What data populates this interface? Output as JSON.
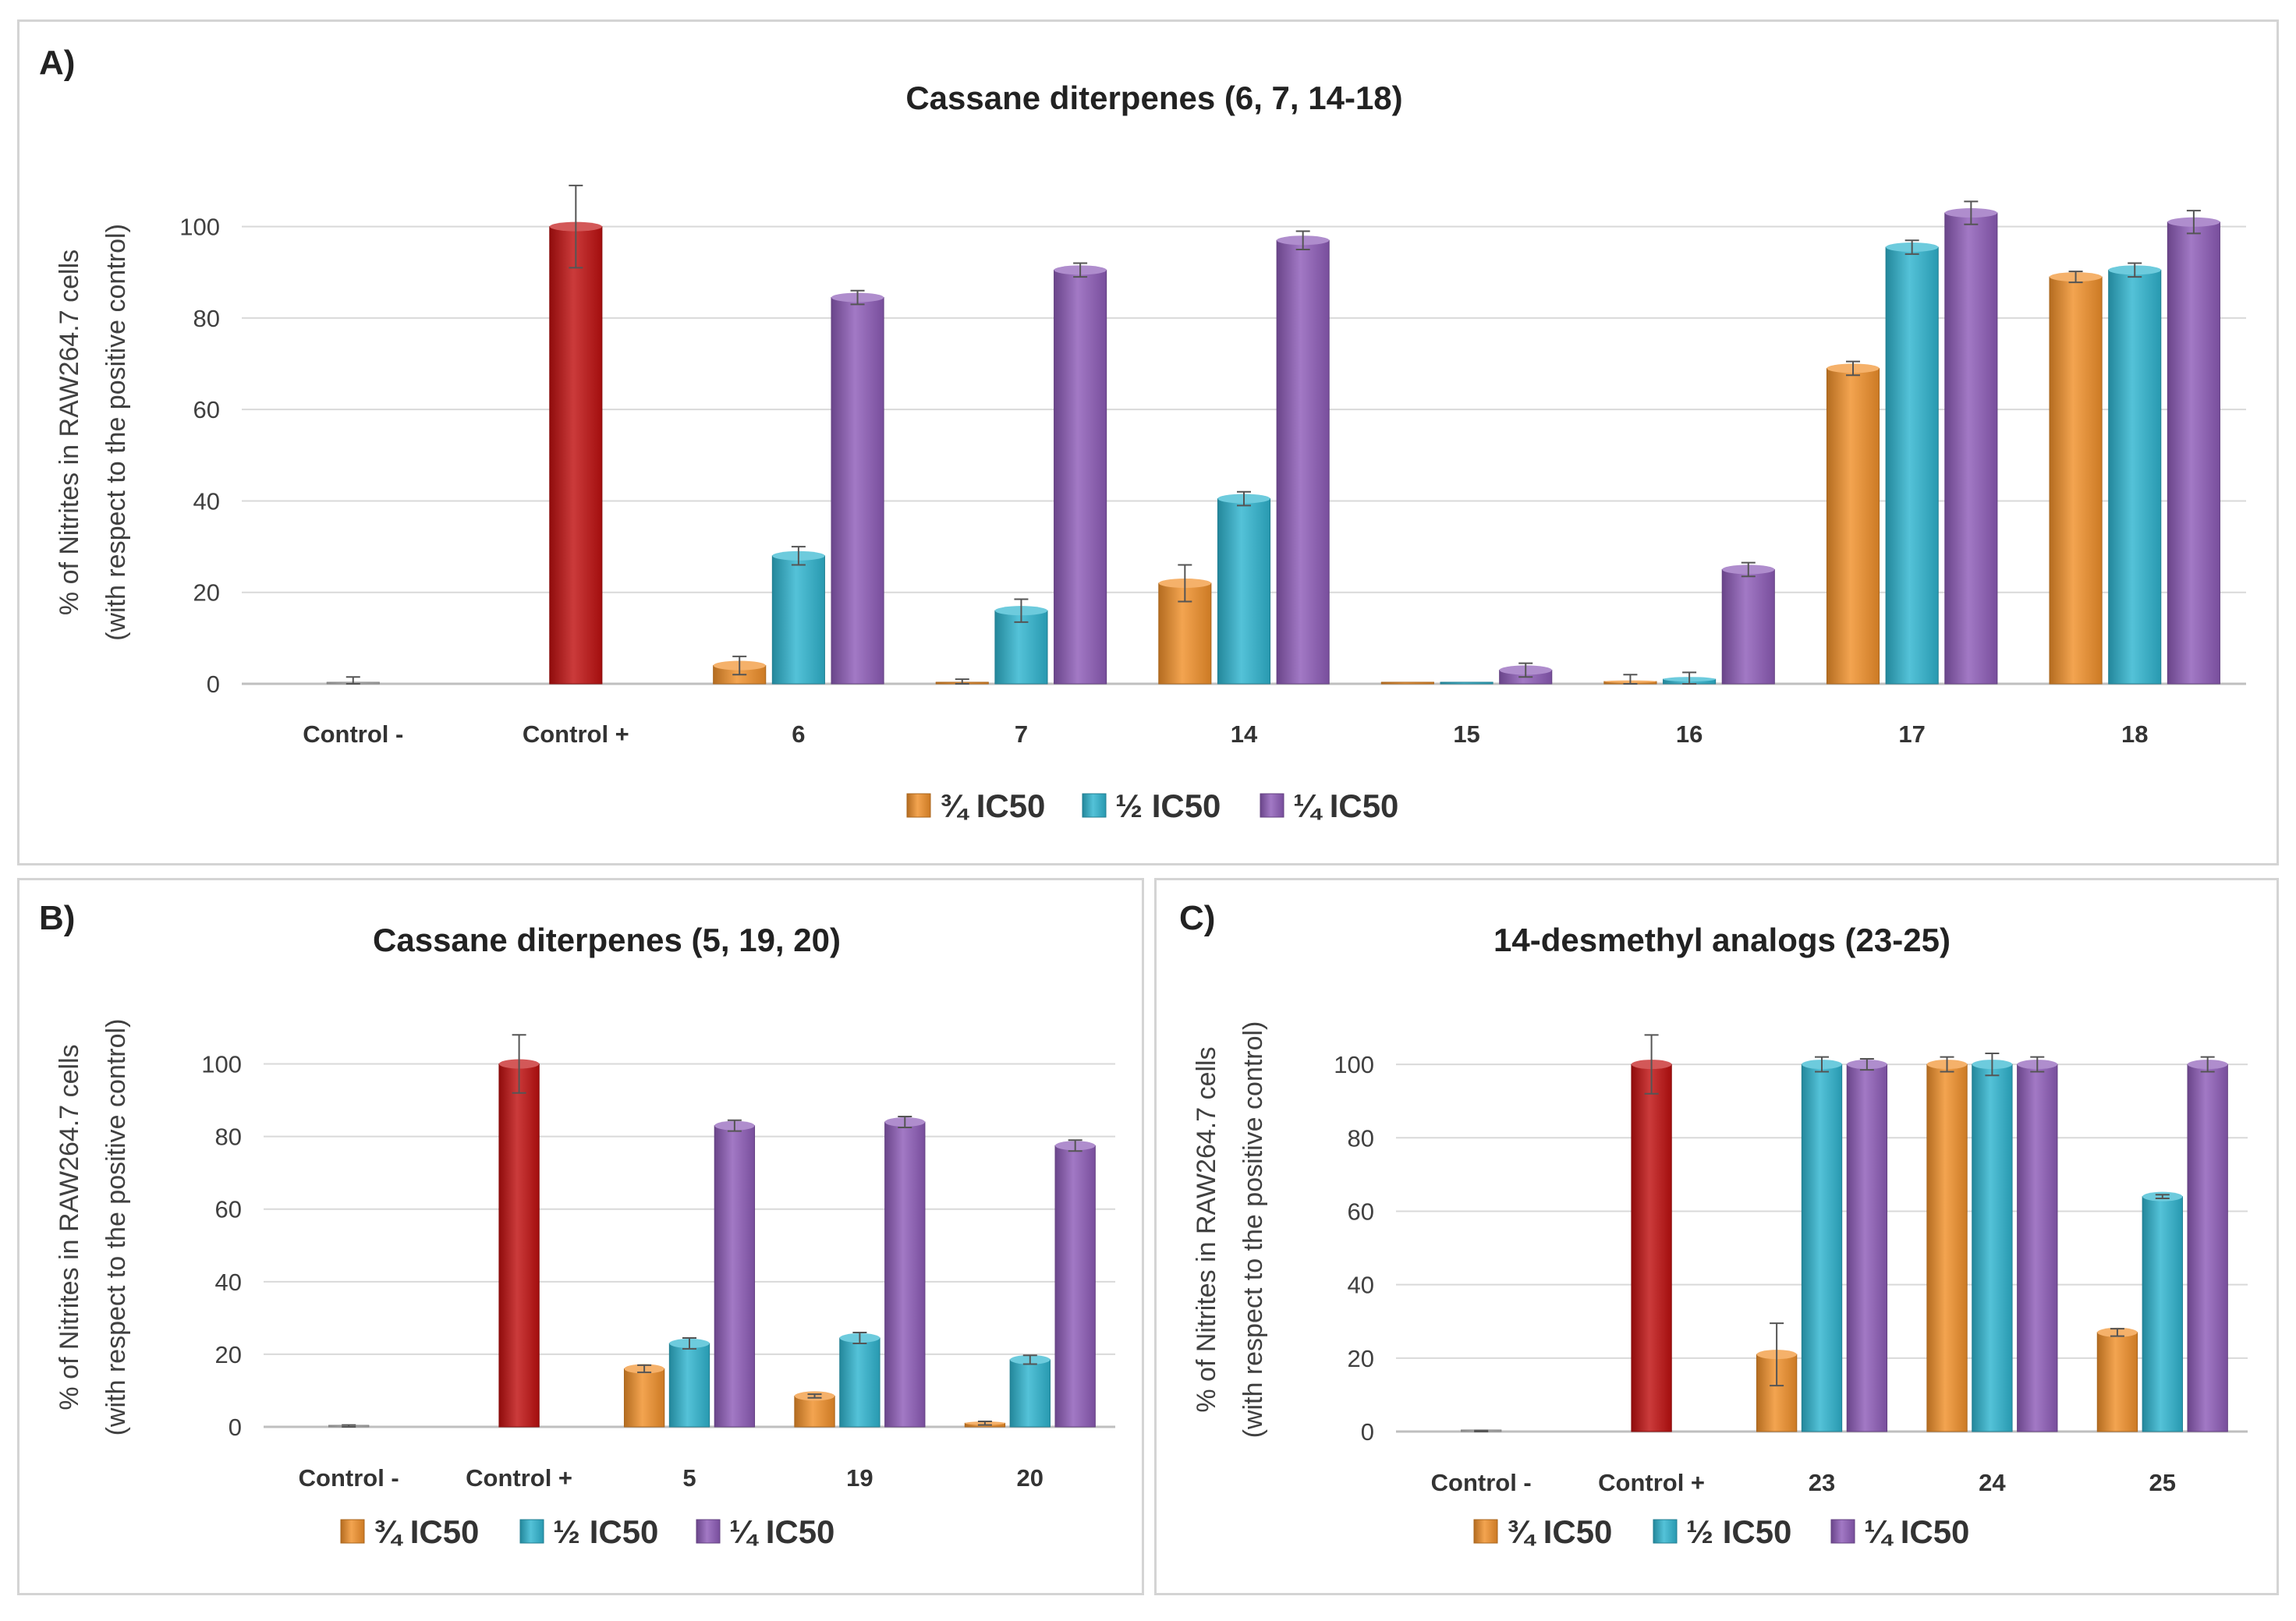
{
  "colors": {
    "three_quarter_ic50": "#f0902a",
    "half_ic50": "#2fb4cf",
    "quarter_ic50": "#8d5cb8",
    "control_positive": "#c01010",
    "gridline": "#d9d9d9",
    "axis": "#bfbfbf"
  },
  "chart_data": [
    {
      "panel": "A)",
      "type": "bar",
      "title": "Cassane diterpenes (6, 7, 14-18)",
      "ylabel_line1": "% of Nitrites in RAW264.7 cells",
      "ylabel_line2": "(with respect to the positive control)",
      "ylim": [
        0,
        110
      ],
      "yticks": [
        0,
        20,
        40,
        60,
        80,
        100
      ],
      "grid": true,
      "legend_position": "bottom",
      "categories": [
        "Control -",
        "Control +",
        "6",
        "7",
        "14",
        "15",
        "16",
        "17",
        "18"
      ],
      "controls": [
        {
          "category": "Control -",
          "value": 0,
          "error": 1.5
        },
        {
          "category": "Control +",
          "value": 100,
          "error": 9
        }
      ],
      "series": [
        {
          "name": "¾ IC50",
          "values": [
            null,
            null,
            4,
            0,
            22,
            0,
            0.5,
            69,
            89
          ],
          "errors": [
            null,
            null,
            2,
            1,
            4,
            0,
            1.5,
            1.5,
            1.2
          ]
        },
        {
          "name": "½ IC50",
          "values": [
            null,
            null,
            28,
            16,
            40.5,
            0,
            1,
            95.5,
            90.5
          ],
          "errors": [
            null,
            null,
            2,
            2.5,
            1.5,
            0,
            1.5,
            1.5,
            1.5
          ]
        },
        {
          "name": "¼ IC50",
          "values": [
            null,
            null,
            84.5,
            90.5,
            97,
            3,
            25,
            103,
            101
          ],
          "errors": [
            null,
            null,
            1.5,
            1.5,
            2,
            1.5,
            1.5,
            2.5,
            2.5
          ]
        }
      ]
    },
    {
      "panel": "B)",
      "type": "bar",
      "title": "Cassane diterpenes (5, 19, 20)",
      "ylabel_line1": "% of Nitrites in RAW264.7 cells",
      "ylabel_line2": "(with respect to the positive control)",
      "ylim": [
        0,
        110
      ],
      "yticks": [
        0,
        20,
        40,
        60,
        80,
        100
      ],
      "grid": true,
      "legend_position": "bottom",
      "categories": [
        "Control -",
        "Control +",
        "5",
        "19",
        "20"
      ],
      "controls": [
        {
          "category": "Control -",
          "value": 0,
          "error": 0.5
        },
        {
          "category": "Control +",
          "value": 100,
          "error": 8
        }
      ],
      "series": [
        {
          "name": "¾ IC50",
          "values": [
            null,
            null,
            16,
            8.5,
            1
          ],
          "errors": [
            null,
            null,
            1,
            0.5,
            0.5
          ]
        },
        {
          "name": "½ IC50",
          "values": [
            null,
            null,
            23,
            24.5,
            18.5
          ],
          "errors": [
            null,
            null,
            1.5,
            1.5,
            1.2
          ]
        },
        {
          "name": "¼ IC50",
          "values": [
            null,
            null,
            83,
            84,
            77.5
          ],
          "errors": [
            null,
            null,
            1.5,
            1.5,
            1.5
          ]
        }
      ]
    },
    {
      "panel": "C)",
      "type": "bar",
      "title": "14-desmethyl analogs (23-25)",
      "ylabel_line1": "% of Nitrites in RAW264.7 cells",
      "ylabel_line2": "(with respect to the positive control)",
      "ylim": [
        0,
        110
      ],
      "yticks": [
        0,
        20,
        40,
        60,
        80,
        100
      ],
      "grid": true,
      "legend_position": "bottom",
      "categories": [
        "Control -",
        "Control +",
        "23",
        "24",
        "25"
      ],
      "controls": [
        {
          "category": "Control -",
          "value": 0,
          "error": 0.3
        },
        {
          "category": "Control +",
          "value": 100,
          "error": 8
        }
      ],
      "series": [
        {
          "name": "¾ IC50",
          "values": [
            null,
            null,
            21,
            100,
            27
          ],
          "errors": [
            null,
            null,
            8.5,
            2,
            1
          ]
        },
        {
          "name": "½ IC50",
          "values": [
            null,
            null,
            100,
            100,
            64
          ],
          "errors": [
            null,
            null,
            2,
            3,
            0.5
          ]
        },
        {
          "name": "¼ IC50",
          "values": [
            null,
            null,
            100,
            100,
            100
          ],
          "errors": [
            null,
            null,
            1.5,
            2,
            2
          ]
        }
      ]
    }
  ]
}
